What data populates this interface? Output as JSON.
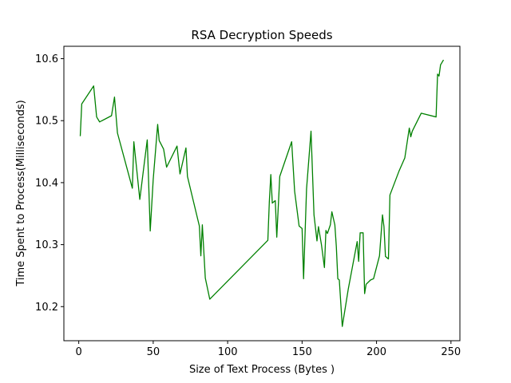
{
  "chart_data": {
    "type": "line",
    "title": "RSA Decryption Speeds",
    "xlabel": "Size of Text Process (Bytes )",
    "ylabel": "Time Spent to Process(Milliseconds)",
    "xlim": [
      -10,
      256
    ],
    "ylim": [
      10.145,
      10.62
    ],
    "xticks": [
      0,
      50,
      100,
      150,
      200,
      250
    ],
    "yticks": [
      10.2,
      10.3,
      10.4,
      10.5,
      10.6
    ],
    "ytick_labels": [
      "10.2",
      "10.3",
      "10.4",
      "10.5",
      "10.6"
    ],
    "grid": false,
    "series": [
      {
        "color": "#008000",
        "x": [
          1,
          2,
          10,
          12,
          14,
          22,
          24,
          26,
          36,
          37,
          41,
          44,
          46,
          48,
          50,
          53,
          54,
          57,
          59,
          66,
          68,
          72,
          73,
          81,
          82,
          83,
          85,
          88,
          127,
          128,
          129,
          130,
          132,
          133,
          135,
          143,
          145,
          148,
          150,
          151,
          153,
          156,
          158,
          160,
          161,
          163,
          165,
          166,
          167,
          169,
          170,
          172,
          173,
          174,
          175,
          177,
          181,
          187,
          188,
          189,
          191,
          192,
          193,
          196,
          198,
          202,
          204,
          205,
          206,
          208,
          209,
          215,
          219,
          222,
          223,
          224,
          230,
          240,
          241,
          242,
          243,
          245
        ],
        "y": [
          10.475,
          10.527,
          10.556,
          10.506,
          10.498,
          10.508,
          10.538,
          10.48,
          10.391,
          10.466,
          10.373,
          10.431,
          10.469,
          10.322,
          10.405,
          10.494,
          10.468,
          10.454,
          10.425,
          10.459,
          10.414,
          10.456,
          10.41,
          10.33,
          10.282,
          10.332,
          10.246,
          10.212,
          10.307,
          10.369,
          10.413,
          10.367,
          10.371,
          10.312,
          10.41,
          10.466,
          10.386,
          10.33,
          10.326,
          10.245,
          10.39,
          10.483,
          10.348,
          10.306,
          10.329,
          10.3,
          10.263,
          10.323,
          10.318,
          10.332,
          10.353,
          10.332,
          10.297,
          10.245,
          10.243,
          10.168,
          10.228,
          10.305,
          10.273,
          10.319,
          10.319,
          10.221,
          10.236,
          10.243,
          10.245,
          10.282,
          10.348,
          10.329,
          10.281,
          10.277,
          10.38,
          10.418,
          10.44,
          10.488,
          10.474,
          10.483,
          10.512,
          10.506,
          10.575,
          10.572,
          10.59,
          10.598
        ]
      }
    ]
  }
}
